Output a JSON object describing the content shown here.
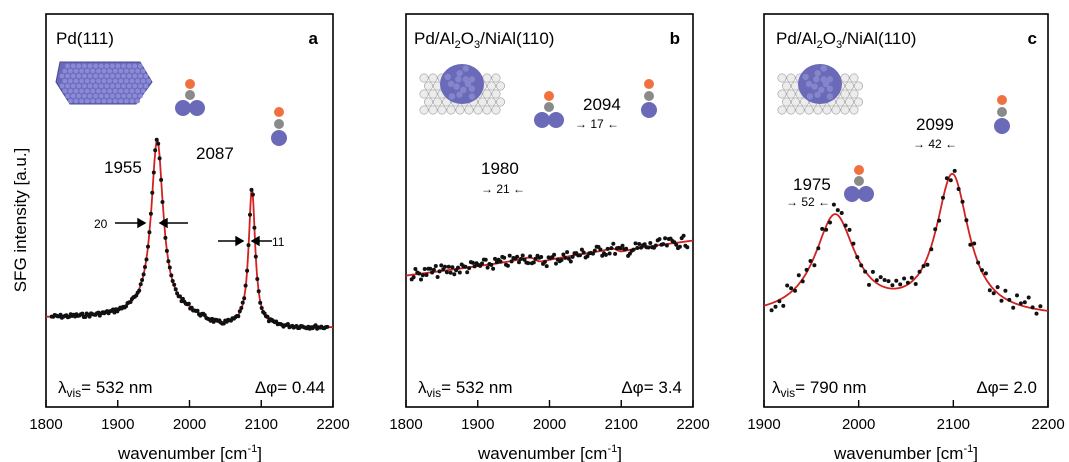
{
  "figure": {
    "ylabel": "SFG intensity [a.u.]",
    "xlabel": "wavenumber [cm",
    "xlabel_exp": "-1",
    "xlabel_end": "]",
    "colors": {
      "fit": "#d42020",
      "points": "#111111",
      "atom_dark": "#6a6ab8",
      "atom_light": "#d0d0d0",
      "o_atom": "#f07040",
      "c_atom": "#8a8a8a"
    }
  },
  "chart_data": [
    {
      "type": "scatter",
      "panel_letter": "a",
      "title": "Pd(111)",
      "xlim": [
        1800,
        2200
      ],
      "xticks": [
        1800,
        1900,
        2000,
        2100,
        2200
      ],
      "series": [
        {
          "name": "",
          "fit": "lorentzian",
          "peaks": [
            1955,
            2087
          ],
          "baseline": 0.3
        }
      ],
      "peak_labels": [
        {
          "text": "1955",
          "x": 1955
        },
        {
          "text": "2087",
          "x": 2087
        }
      ],
      "fwhm_labels": [
        {
          "text": "20",
          "x": 1955
        },
        {
          "text": "11",
          "x": 2087
        }
      ],
      "lambda_label": "λ",
      "lambda_sub": "vis",
      "lambda_value": "= 532 nm",
      "phase_label": "Δφ= 0.44",
      "phase": 0.44,
      "adsorption": [
        "bridge",
        "atop"
      ]
    },
    {
      "type": "scatter",
      "panel_letter": "b",
      "title_parts": [
        "Pd/Al",
        "2",
        "O",
        "3",
        "/NiAl(110)"
      ],
      "xlim": [
        1800,
        2200
      ],
      "xticks": [
        1800,
        1900,
        2000,
        2100,
        2200
      ],
      "series": [
        {
          "name": "",
          "fit": "dispersive",
          "peaks": [
            1980,
            2094
          ]
        }
      ],
      "peak_labels": [
        {
          "text": "1980",
          "x": 1980
        },
        {
          "text": "2094",
          "x": 2094
        }
      ],
      "fwhm_labels": [
        {
          "text": "→ 21 ←",
          "x": 1980
        },
        {
          "text": "→ 17 ←",
          "x": 2094
        }
      ],
      "lambda_label": "λ",
      "lambda_sub": "vis",
      "lambda_value": "= 532 nm",
      "phase_label": "Δφ= 3.4",
      "phase": 3.4,
      "adsorption": [
        "bridge",
        "atop"
      ]
    },
    {
      "type": "scatter",
      "panel_letter": "c",
      "title_parts": [
        "Pd/Al",
        "2",
        "O",
        "3",
        "/NiAl(110)"
      ],
      "xlim": [
        1900,
        2200
      ],
      "xticks": [
        1900,
        2000,
        2100,
        2200
      ],
      "series": [
        {
          "name": "",
          "fit": "lorentzian",
          "peaks": [
            1975,
            2099
          ]
        }
      ],
      "peak_labels": [
        {
          "text": "1975",
          "x": 1975
        },
        {
          "text": "2099",
          "x": 2099
        }
      ],
      "fwhm_labels": [
        {
          "text": "→ 52 ←",
          "x": 1975
        },
        {
          "text": "→ 42 ←",
          "x": 2099
        }
      ],
      "lambda_label": "λ",
      "lambda_sub": "vis",
      "lambda_value": "= 790 nm",
      "phase_label": "Δφ= 2.0",
      "phase": 2.0,
      "adsorption": [
        "bridge",
        "atop"
      ]
    }
  ]
}
